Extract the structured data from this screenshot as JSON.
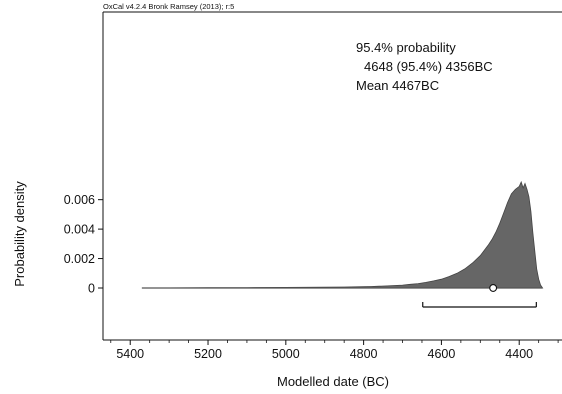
{
  "header": "OxCal v4.2.4 Bronk Ramsey (2013); r:5",
  "chart_data": {
    "type": "area",
    "xlabel": "Modelled date (BC)",
    "ylabel": "Probability density",
    "x_reversed": true,
    "xlim": [
      5470,
      4290
    ],
    "ylim": [
      0,
      0.0072
    ],
    "x_ticks": [
      5400,
      5200,
      5000,
      4800,
      4600,
      4400
    ],
    "y_ticks": [
      0.006,
      0.004,
      0.002,
      0
    ],
    "y_tick_labels": [
      "0.006",
      "0.004",
      "0.002",
      "0"
    ],
    "annotations": [
      "95.4% probability",
      "4648 (95.4%) 4356BC",
      "Mean 4467BC"
    ],
    "range_95": {
      "from": 4648,
      "to": 4356
    },
    "mean": 4467,
    "fill_color": "#666666",
    "series": [
      {
        "x": [
          5370,
          5300,
          5200,
          5100,
          5000,
          4950,
          4900,
          4850,
          4800,
          4780,
          4760,
          4740,
          4720,
          4700,
          4680,
          4660,
          4640,
          4620,
          4600,
          4580,
          4560,
          4540,
          4520,
          4500,
          4480,
          4470,
          4460,
          4450,
          4440,
          4430,
          4420,
          4410,
          4400,
          4395,
          4390,
          4385,
          4380,
          4375,
          4370,
          4365,
          4360,
          4355,
          4350,
          4345,
          4340
        ],
        "y": [
          0,
          1e-05,
          2e-05,
          3e-05,
          4e-05,
          5e-05,
          6e-05,
          7e-05,
          9e-05,
          0.0001,
          0.00012,
          0.00014,
          0.00017,
          0.0002,
          0.00025,
          0.0003,
          0.00038,
          0.00048,
          0.0006,
          0.00078,
          0.001,
          0.0013,
          0.0017,
          0.0022,
          0.0029,
          0.0033,
          0.0038,
          0.0044,
          0.0051,
          0.0058,
          0.0064,
          0.0067,
          0.0069,
          0.0072,
          0.0068,
          0.0071,
          0.0067,
          0.0062,
          0.0052,
          0.0038,
          0.0025,
          0.0013,
          0.0006,
          0.0002,
          0
        ]
      }
    ]
  }
}
